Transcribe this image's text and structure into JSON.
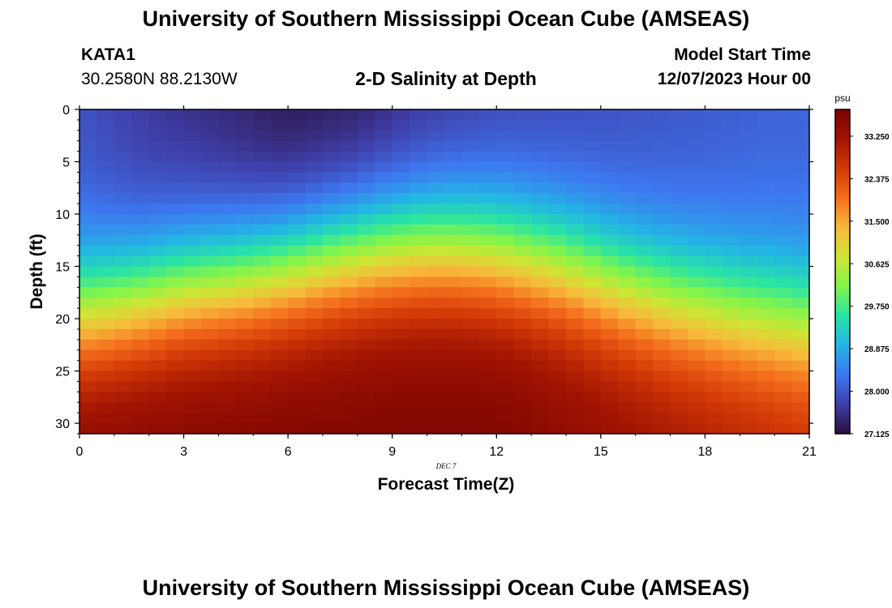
{
  "header": {
    "title": "University of Southern Mississippi Ocean Cube (AMSEAS)",
    "station": "KATA1",
    "coords": "30.2580N  88.2130W",
    "subtitle": "2-D Salinity at Depth",
    "model_start_label": "Model Start Time",
    "model_start_value": "12/07/2023 Hour 00"
  },
  "footer": {
    "title": "University of Southern Mississippi Ocean Cube (AMSEAS)"
  },
  "chart_data": {
    "type": "heatmap",
    "title": "2-D Salinity at Depth",
    "xlabel": "Forecast Time(Z)",
    "ylabel": "Depth (ft)",
    "date_label": "DEC 7",
    "xlim": [
      0,
      21
    ],
    "ylim": [
      0,
      31
    ],
    "x_ticks": [
      0,
      3,
      6,
      9,
      12,
      15,
      18,
      21
    ],
    "y_ticks": [
      0,
      5,
      10,
      15,
      20,
      25,
      30
    ],
    "colorbar": {
      "unit": "psu",
      "range": [
        27.125,
        33.8
      ],
      "tick_labels": [
        "33.250",
        "32.375",
        "31.500",
        "30.625",
        "29.750",
        "28.875",
        "28.000",
        "27.125"
      ],
      "tick_values": [
        33.25,
        32.375,
        31.5,
        30.625,
        29.75,
        28.875,
        28.0,
        27.125
      ],
      "colormap": [
        "#2b0f3b",
        "#3f3fa9",
        "#3e77f0",
        "#23b4e6",
        "#28e4a6",
        "#82f54a",
        "#cfe535",
        "#f8b93b",
        "#f46d1c",
        "#d23a06",
        "#a21402",
        "#7a0403"
      ]
    },
    "grid_description": "salinity (psu) sampled every 0.5 h (columns) and 1 ft (rows); fresher surface layer over saltier bottom water",
    "surface_profile_points": {
      "hours": [
        0,
        2,
        4,
        6,
        8,
        10,
        12,
        14,
        16,
        18,
        20,
        21
      ],
      "surface_psu": [
        27.9,
        27.6,
        27.4,
        27.15,
        27.2,
        27.5,
        27.7,
        27.8,
        27.9,
        28.0,
        28.1,
        28.1
      ]
    }
  }
}
